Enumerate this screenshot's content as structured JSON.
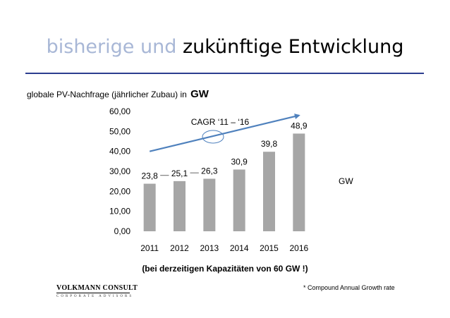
{
  "header": {
    "title_muted": "bisherige und",
    "title_main": "zukünftige Entwicklung"
  },
  "subtitle": {
    "text": "globale PV-Nachfrage (jährlicher Zubau) in",
    "unit": "GW"
  },
  "side_unit": "GW",
  "note": "(bei derzeitigen Kapazitäten von 60 GW !)",
  "footnote": "* Compound Annual Growth rate",
  "logo": {
    "brand": "VOLKMANN CONSULT",
    "tagline": "CORPORATE ADVISORS"
  },
  "colors": {
    "bar": "#a6a6a6",
    "trend": "#4f81bd",
    "title_muted": "#a8b7d6",
    "rule": "#2c3d8f"
  },
  "chart_data": {
    "type": "bar",
    "categories": [
      "2011",
      "2012",
      "2013",
      "2014",
      "2015",
      "2016"
    ],
    "values": [
      23.8,
      25.1,
      26.3,
      30.9,
      39.8,
      48.9
    ],
    "data_labels": [
      "23,8",
      "25,1",
      "26,3",
      "30,9",
      "39,8",
      "48,9"
    ],
    "yticks": [
      "0,00",
      "10,00",
      "20,00",
      "30,00",
      "40,00",
      "50,00",
      "60,00"
    ],
    "ylim": [
      0,
      60
    ],
    "grid": false,
    "annotation": "CAGR ‘11 – ‘16",
    "trend_arrow": {
      "from_year": "2011",
      "to_year": "2016",
      "from": 40,
      "to": 58
    },
    "title": "",
    "xlabel": "",
    "ylabel": ""
  }
}
